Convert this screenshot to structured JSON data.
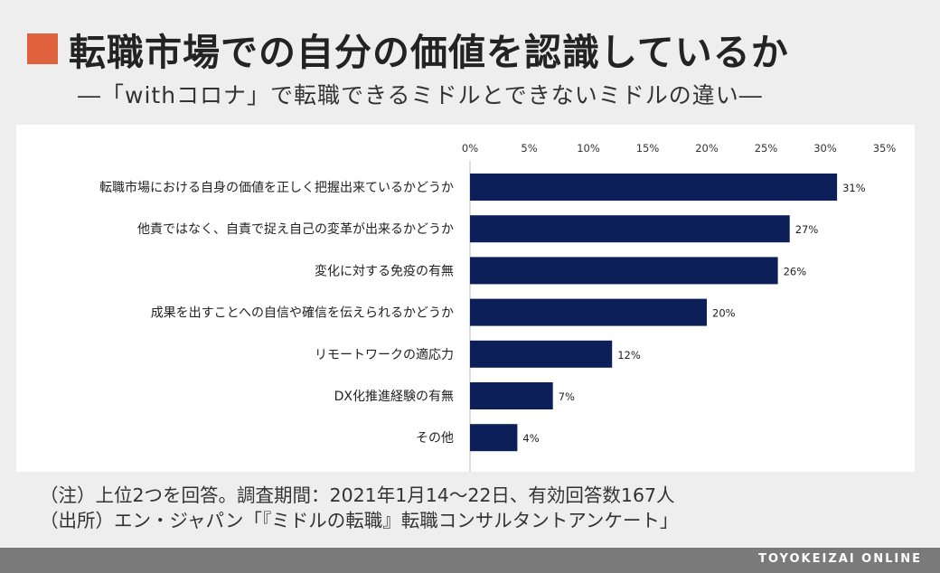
{
  "header": {
    "title": "転職市場での自分の価値を認識しているか",
    "subtitle": "―「withコロナ」で転職できるミドルとできないミドルの違い―"
  },
  "colors": {
    "accent": "#e0623d",
    "bar": "#0c1f59",
    "footer": "#7a7a7a"
  },
  "chart_data": {
    "type": "bar",
    "orientation": "horizontal",
    "title": "",
    "xlabel": "",
    "ylabel": "",
    "xlim": [
      0,
      35
    ],
    "ticks": [
      "0%",
      "5%",
      "10%",
      "15%",
      "20%",
      "25%",
      "30%",
      "35%"
    ],
    "tick_values": [
      0,
      5,
      10,
      15,
      20,
      25,
      30,
      35
    ],
    "grid": false,
    "categories": [
      "転職市場における自身の価値を正しく把握出来ているかどうか",
      "他責ではなく、自責で捉え自己の変革が出来るかどうか",
      "変化に対する免疫の有無",
      "成果を出すことへの自信や確信を伝えられるかどうか",
      "リモートワークの適応力",
      "DX化推進経験の有無",
      "その他"
    ],
    "values": [
      31,
      27,
      26,
      20,
      12,
      7,
      4
    ],
    "value_labels": [
      "31%",
      "27%",
      "26%",
      "20%",
      "12%",
      "7%",
      "4%"
    ]
  },
  "notes": {
    "line1": "（注）上位2つを回答。調査期間：2021年1月14～22日、有効回答数167人",
    "line2": "（出所）エン・ジャパン「『ミドルの転職』転職コンサルタントアンケート」"
  },
  "footer": {
    "brand": "TOYOKEIZAI ONLINE"
  }
}
